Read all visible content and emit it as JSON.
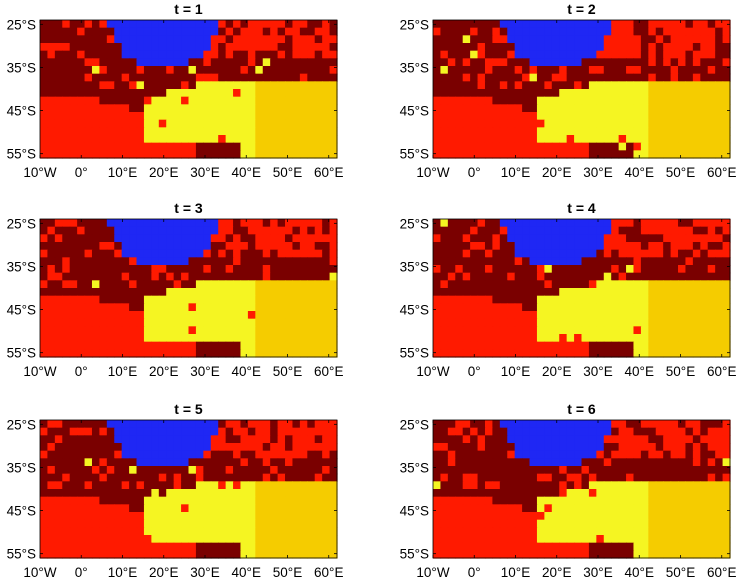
{
  "figure": {
    "colors": {
      "background": "#ffffff",
      "axis": "#000000",
      "cluster_dark_red": "#7a0000",
      "cluster_red": "#ff1a00",
      "cluster_yellow": "#f5f522",
      "cluster_gold": "#f5cc00",
      "cluster_blue": "#1f27f4"
    }
  },
  "chart_data": [
    {
      "type": "heatmap",
      "title": "t = 1",
      "xlim": [
        -10,
        62
      ],
      "ylim": [
        -56,
        -24
      ],
      "xticks": [
        "10°W",
        "0°",
        "10°E",
        "20°E",
        "30°E",
        "40°E",
        "50°E",
        "60°E"
      ],
      "yticks": [
        "25°S",
        "35°S",
        "45°S",
        "55°S"
      ],
      "seed": 11
    },
    {
      "type": "heatmap",
      "title": "t = 2",
      "xlim": [
        -10,
        62
      ],
      "ylim": [
        -56,
        -24
      ],
      "xticks": [
        "10°W",
        "0°",
        "10°E",
        "20°E",
        "30°E",
        "40°E",
        "50°E",
        "60°E"
      ],
      "yticks": [
        "25°S",
        "35°S",
        "45°S",
        "55°S"
      ],
      "seed": 23
    },
    {
      "type": "heatmap",
      "title": "t = 3",
      "xlim": [
        -10,
        62
      ],
      "ylim": [
        -56,
        -24
      ],
      "xticks": [
        "10°W",
        "0°",
        "10°E",
        "20°E",
        "30°E",
        "40°E",
        "50°E",
        "60°E"
      ],
      "yticks": [
        "25°S",
        "35°S",
        "45°S",
        "55°S"
      ],
      "seed": 37
    },
    {
      "type": "heatmap",
      "title": "t = 4",
      "xlim": [
        -10,
        62
      ],
      "ylim": [
        -56,
        -24
      ],
      "xticks": [
        "10°W",
        "0°",
        "10°E",
        "20°E",
        "30°E",
        "40°E",
        "50°E",
        "60°E"
      ],
      "yticks": [
        "25°S",
        "35°S",
        "45°S",
        "55°S"
      ],
      "seed": 41
    },
    {
      "type": "heatmap",
      "title": "t = 5",
      "xlim": [
        -10,
        62
      ],
      "ylim": [
        -56,
        -24
      ],
      "xticks": [
        "10°W",
        "0°",
        "10°E",
        "20°E",
        "30°E",
        "40°E",
        "50°E",
        "60°E"
      ],
      "yticks": [
        "25°S",
        "35°S",
        "45°S",
        "55°S"
      ],
      "seed": 53
    },
    {
      "type": "heatmap",
      "title": "t = 6",
      "xlim": [
        -10,
        62
      ],
      "ylim": [
        -56,
        -24
      ],
      "xticks": [
        "10°W",
        "0°",
        "10°E",
        "20°E",
        "30°E",
        "40°E",
        "50°E",
        "60°E"
      ],
      "yticks": [
        "25°S",
        "35°S",
        "45°S",
        "55°S"
      ],
      "seed": 67
    }
  ]
}
